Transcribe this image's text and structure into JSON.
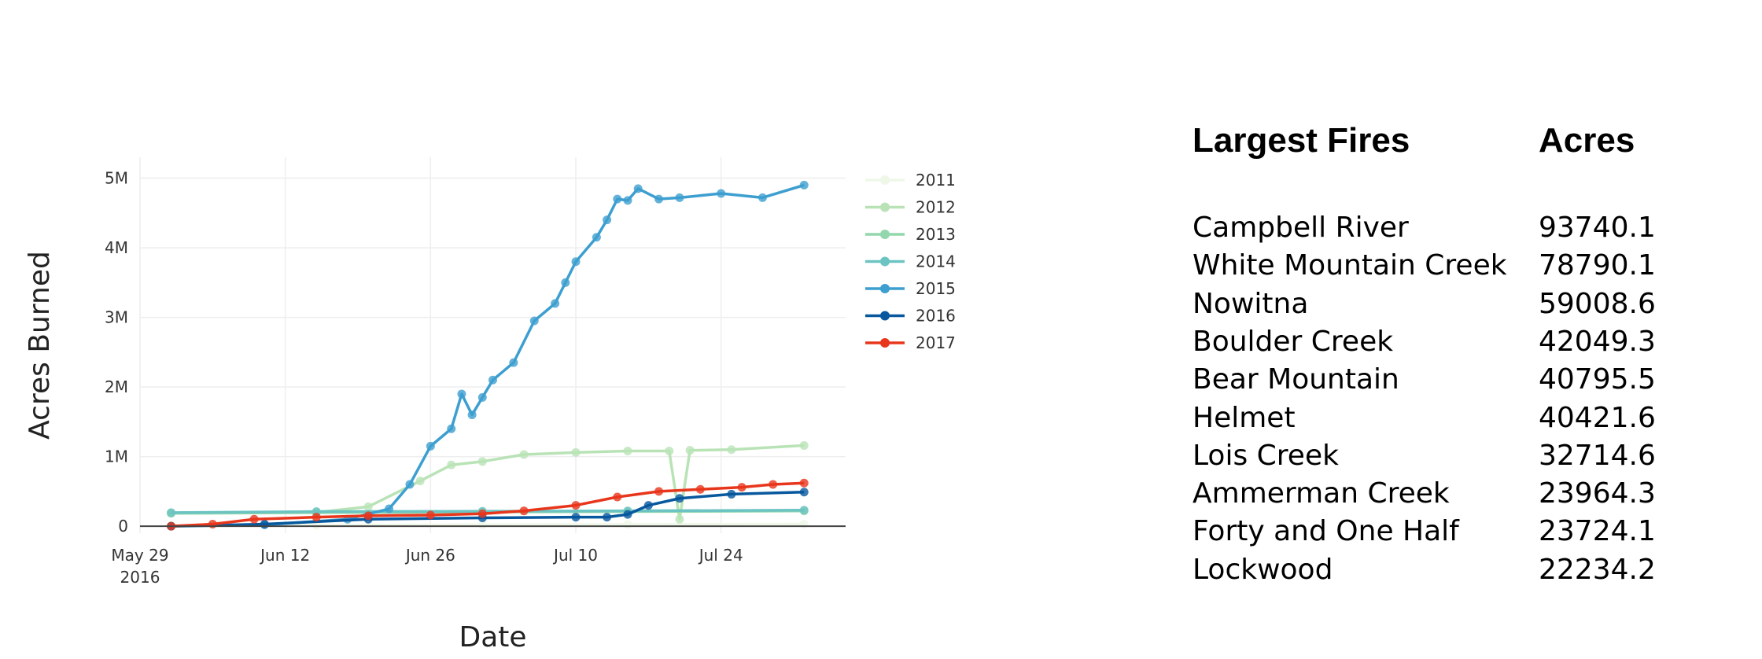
{
  "chart_data": {
    "type": "line",
    "xlabel": "Date",
    "ylabel": "Acres Burned",
    "x_tick_labels": [
      {
        "date": "2016-05-29",
        "lines": [
          "May 29",
          "2016"
        ]
      },
      {
        "date": "2016-06-12",
        "lines": [
          "Jun 12"
        ]
      },
      {
        "date": "2016-06-26",
        "lines": [
          "Jun 26"
        ]
      },
      {
        "date": "2016-07-10",
        "lines": [
          "Jul 10"
        ]
      },
      {
        "date": "2016-07-24",
        "lines": [
          "Jul 24"
        ]
      }
    ],
    "xlim": [
      "2016-05-29",
      "2016-08-05"
    ],
    "y_ticks": [
      {
        "value": 0,
        "label": "0"
      },
      {
        "value": 1000000,
        "label": "1M"
      },
      {
        "value": 2000000,
        "label": "2M"
      },
      {
        "value": 3000000,
        "label": "3M"
      },
      {
        "value": 4000000,
        "label": "4M"
      },
      {
        "value": 5000000,
        "label": "5M"
      }
    ],
    "ylim": [
      -100000,
      5300000
    ],
    "grid": true,
    "legend_position": "right",
    "series": [
      {
        "name": "2011",
        "color": "#eef7e8",
        "x": [
          "2016-06-01",
          "2016-06-15",
          "2016-07-01",
          "2016-07-15",
          "2016-08-01"
        ],
        "y": [
          10000,
          15000,
          20000,
          25000,
          30000
        ]
      },
      {
        "name": "2012",
        "color": "#b9e3b6",
        "x": [
          "2016-06-01",
          "2016-06-15",
          "2016-06-20",
          "2016-06-25",
          "2016-06-28",
          "2016-07-01",
          "2016-07-05",
          "2016-07-10",
          "2016-07-15",
          "2016-07-19",
          "2016-07-20",
          "2016-07-21",
          "2016-07-25",
          "2016-08-01"
        ],
        "y": [
          190000,
          200000,
          280000,
          650000,
          880000,
          930000,
          1030000,
          1060000,
          1080000,
          1080000,
          100000,
          1090000,
          1100000,
          1160000
        ]
      },
      {
        "name": "2013",
        "color": "#93d7ad",
        "x": [
          "2016-06-01",
          "2016-06-15",
          "2016-07-01",
          "2016-07-15",
          "2016-08-01"
        ],
        "y": [
          185000,
          195000,
          205000,
          210000,
          220000
        ]
      },
      {
        "name": "2014",
        "color": "#6bc4c2",
        "x": [
          "2016-06-01",
          "2016-06-15",
          "2016-07-01",
          "2016-07-15",
          "2016-08-01"
        ],
        "y": [
          195000,
          210000,
          215000,
          220000,
          230000
        ]
      },
      {
        "name": "2015",
        "color": "#3d9fd0",
        "x": [
          "2016-06-01",
          "2016-06-10",
          "2016-06-18",
          "2016-06-22",
          "2016-06-24",
          "2016-06-26",
          "2016-06-28",
          "2016-06-29",
          "2016-06-30",
          "2016-07-01",
          "2016-07-02",
          "2016-07-04",
          "2016-07-06",
          "2016-07-08",
          "2016-07-09",
          "2016-07-10",
          "2016-07-12",
          "2016-07-13",
          "2016-07-14",
          "2016-07-15",
          "2016-07-16",
          "2016-07-18",
          "2016-07-20",
          "2016-07-24",
          "2016-07-28",
          "2016-08-01"
        ],
        "y": [
          0,
          20000,
          100000,
          250000,
          600000,
          1150000,
          1400000,
          1900000,
          1600000,
          1850000,
          2100000,
          2350000,
          2950000,
          3200000,
          3500000,
          3800000,
          4150000,
          4400000,
          4700000,
          4680000,
          4850000,
          4700000,
          4720000,
          4780000,
          4720000,
          4900000
        ]
      },
      {
        "name": "2016",
        "color": "#08589e",
        "x": [
          "2016-06-01",
          "2016-06-10",
          "2016-06-20",
          "2016-07-01",
          "2016-07-10",
          "2016-07-13",
          "2016-07-15",
          "2016-07-17",
          "2016-07-20",
          "2016-07-25",
          "2016-08-01"
        ],
        "y": [
          0,
          30000,
          100000,
          120000,
          130000,
          130000,
          170000,
          300000,
          400000,
          460000,
          490000
        ]
      },
      {
        "name": "2017",
        "color": "#e8361c",
        "x": [
          "2016-06-01",
          "2016-06-05",
          "2016-06-09",
          "2016-06-15",
          "2016-06-20",
          "2016-06-26",
          "2016-07-01",
          "2016-07-05",
          "2016-07-10",
          "2016-07-14",
          "2016-07-18",
          "2016-07-22",
          "2016-07-26",
          "2016-07-29",
          "2016-08-01"
        ],
        "y": [
          0,
          30000,
          100000,
          130000,
          150000,
          160000,
          180000,
          220000,
          300000,
          420000,
          500000,
          530000,
          560000,
          600000,
          620000
        ]
      }
    ]
  },
  "table": {
    "header_name": "Largest Fires",
    "header_value": "Acres",
    "rows": [
      {
        "name": "Campbell River",
        "acres": "93740.1"
      },
      {
        "name": "White Mountain Creek",
        "acres": "78790.1"
      },
      {
        "name": "Nowitna",
        "acres": "59008.6"
      },
      {
        "name": "Boulder Creek",
        "acres": "42049.3"
      },
      {
        "name": "Bear Mountain",
        "acres": "40795.5"
      },
      {
        "name": "Helmet",
        "acres": "40421.6"
      },
      {
        "name": "Lois Creek",
        "acres": "32714.6"
      },
      {
        "name": "Ammerman Creek",
        "acres": "23964.3"
      },
      {
        "name": "Forty and One Half",
        "acres": "23724.1"
      },
      {
        "name": "Lockwood",
        "acres": "22234.2"
      }
    ]
  }
}
